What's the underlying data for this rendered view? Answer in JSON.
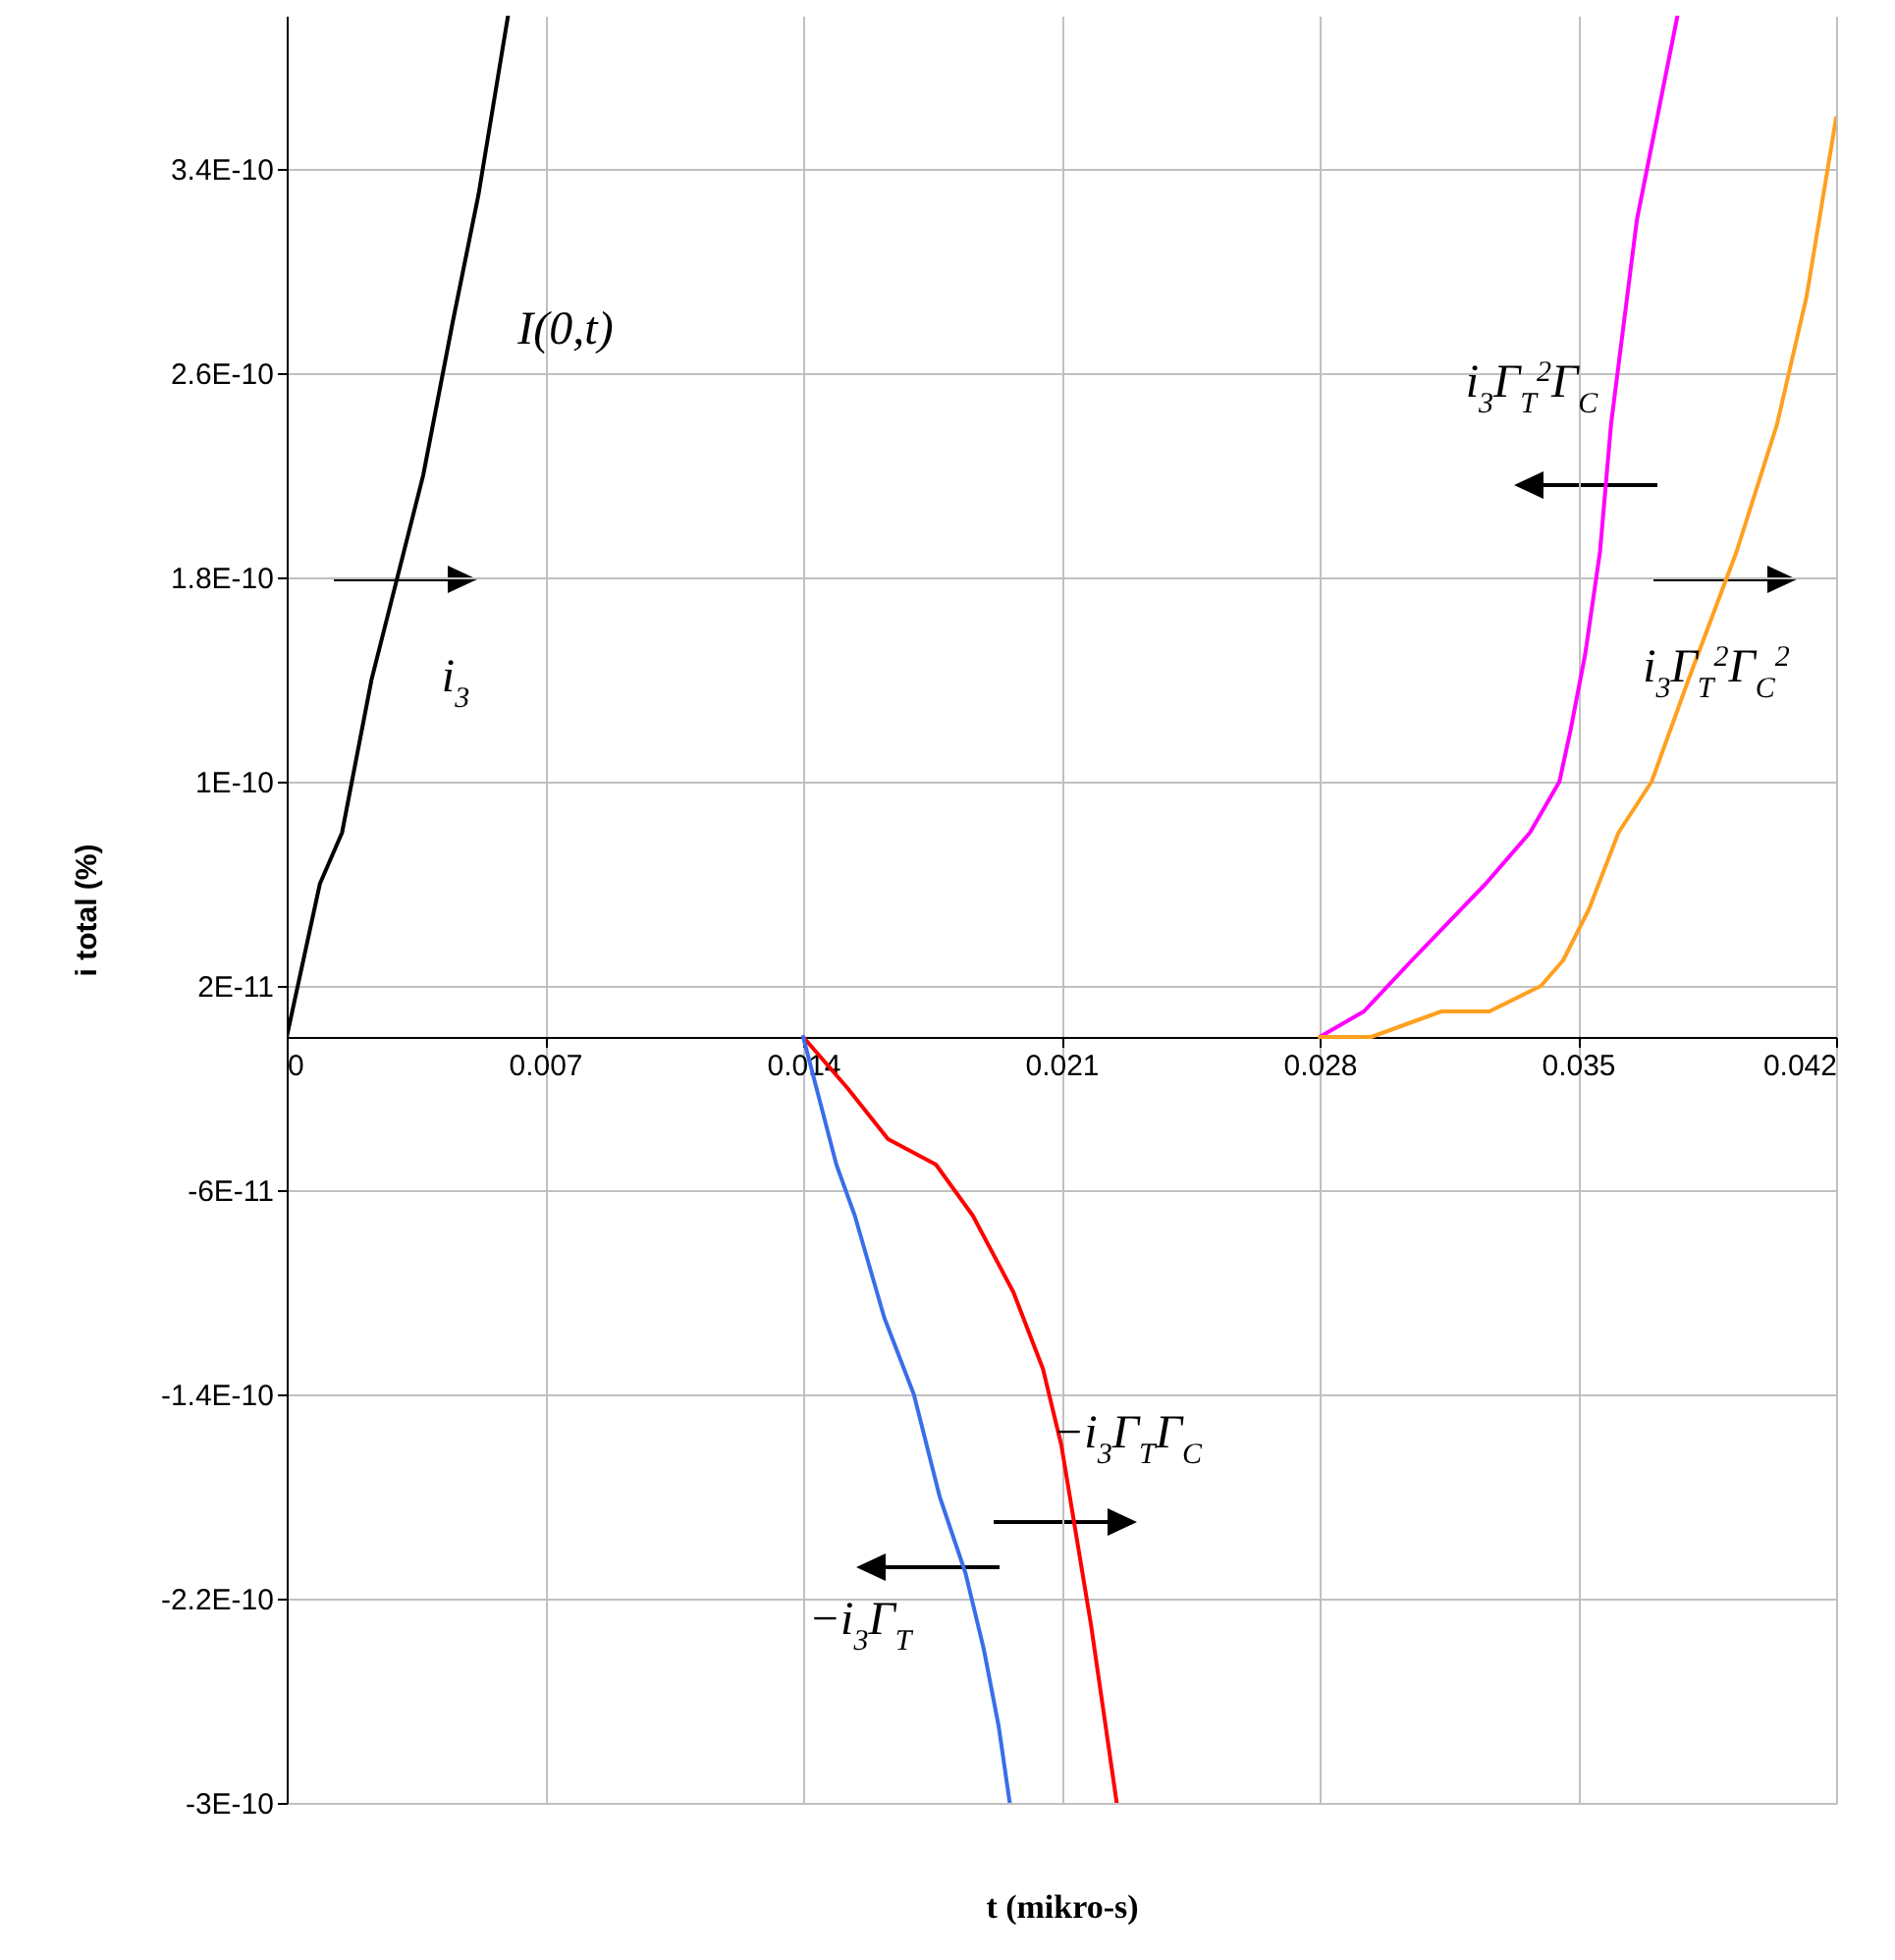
{
  "chart_data": {
    "type": "line",
    "xlabel": "t (mikro-s)",
    "ylabel": "i total (%)",
    "xlim": [
      0,
      0.042
    ],
    "xticks": [
      0,
      0.007,
      0.014,
      0.021,
      0.028,
      0.035,
      0.042
    ],
    "ylim": [
      -3e-10,
      4e-10
    ],
    "yticks": [
      {
        "value": -3e-10,
        "label": "-3E-10"
      },
      {
        "value": -2.2e-10,
        "label": "-2.2E-10"
      },
      {
        "value": -1.4e-10,
        "label": "-1.4E-10"
      },
      {
        "value": -6e-11,
        "label": "-6E-11"
      },
      {
        "value": 2e-11,
        "label": "2E-11"
      },
      {
        "value": 1e-10,
        "label": "1E-10"
      },
      {
        "value": 1.8e-10,
        "label": "1.8E-10"
      },
      {
        "value": 2.6e-10,
        "label": "2.6E-10"
      },
      {
        "value": 3.4e-10,
        "label": "3.4E-10"
      }
    ],
    "grid": true,
    "series": [
      {
        "color": "#000000",
        "x": [
          0,
          0.0009,
          0.0015,
          0.0023,
          0.0037,
          0.0045,
          0.0052,
          0.006
        ],
        "values": [
          0,
          6e-11,
          8e-11,
          1.4e-10,
          2.2e-10,
          2.8e-10,
          3.3e-10,
          4e-10
        ]
      },
      {
        "color": "#ff00ff",
        "x": [
          0.028,
          0.0292,
          0.0305,
          0.0325,
          0.0337,
          0.0345,
          0.0348,
          0.0352,
          0.0356,
          0.0359,
          0.0366,
          0.0377
        ],
        "values": [
          0,
          1e-11,
          3e-11,
          6e-11,
          8e-11,
          1e-10,
          1.2e-10,
          1.5e-10,
          1.9e-10,
          2.4e-10,
          3.2e-10,
          4e-10
        ]
      },
      {
        "color": "#ffa020",
        "x": [
          0.028,
          0.0294,
          0.0313,
          0.0326,
          0.034,
          0.0346,
          0.0353,
          0.0361,
          0.037,
          0.038,
          0.0393,
          0.0404,
          0.0412,
          0.042
        ],
        "values": [
          0,
          0,
          1e-11,
          1e-11,
          2e-11,
          3e-11,
          5e-11,
          8e-11,
          1e-10,
          1.4e-10,
          1.9e-10,
          2.4e-10,
          2.9e-10,
          3.6e-10
        ]
      },
      {
        "color": "#ff0000",
        "x": [
          0.014,
          0.0152,
          0.0163,
          0.0176,
          0.0186,
          0.0197,
          0.0205,
          0.021,
          0.0218,
          0.0222,
          0.0225
        ],
        "values": [
          0,
          -2e-11,
          -4e-11,
          -5e-11,
          -7e-11,
          -1e-10,
          -1.3e-10,
          -1.6e-10,
          -2.3e-10,
          -2.7e-10,
          -3e-10
        ]
      },
      {
        "color": "#3a6ee8",
        "x": [
          0.014,
          0.0149,
          0.0154,
          0.0162,
          0.017,
          0.0177,
          0.0184,
          0.0189,
          0.0193,
          0.0196
        ],
        "values": [
          0,
          -5e-11,
          -7e-11,
          -1.1e-10,
          -1.4e-10,
          -1.8e-10,
          -2.1e-10,
          -2.4e-10,
          -2.7e-10,
          -3e-10
        ]
      }
    ],
    "annotations": [
      "I(0,t)",
      "i$_{3}$",
      "i$_{3}$Γ$_{T}$$^{2}$Γ$_{C}$",
      "i$_{3}$Γ$_{T}$$^{2}$Γ$_{C}$$^{2}$",
      "−i$_{3}$Γ$_{T}$Γ$_{C}$",
      "−i$_{3}$Γ$_{T}$"
    ]
  }
}
